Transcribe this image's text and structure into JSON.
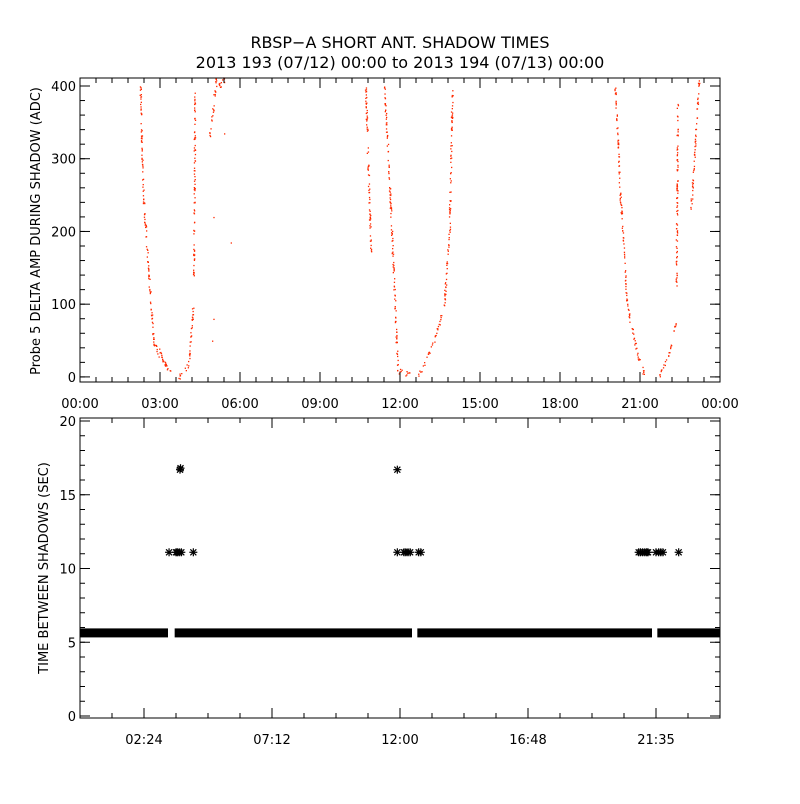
{
  "title": "RBSP−A SHORT ANT. SHADOW TIMES",
  "subtitle": "2013 193 (07/12) 00:00 to 2013 194 (07/13) 00:00",
  "chart_data": [
    {
      "type": "scatter",
      "ylabel": "Probe 5 DELTA AMP DURING SHADOW (ADC)",
      "xlabel": "",
      "xlim_hours": [
        0,
        24
      ],
      "ylim": [
        -7,
        411
      ],
      "x_tick_labels": [
        "00:00",
        "03:00",
        "06:00",
        "09:00",
        "12:00",
        "15:00",
        "18:00",
        "21:00",
        "00:00"
      ],
      "x_tick_hours": [
        0,
        3,
        6,
        9,
        12,
        15,
        18,
        21,
        24
      ],
      "y_ticks": [
        0,
        100,
        200,
        300,
        400
      ],
      "y_tick_labels": [
        "0",
        "100",
        "200",
        "300",
        "400"
      ],
      "color": "#ff2a00",
      "segments_hour_value": [
        [
          2.25,
          400,
          2.36,
          250
        ],
        [
          2.36,
          250,
          2.55,
          150
        ],
        [
          2.55,
          150,
          2.74,
          50
        ],
        [
          2.74,
          50,
          2.95,
          30
        ],
        [
          2.95,
          40,
          3.15,
          20
        ],
        [
          3.15,
          20,
          3.37,
          5
        ],
        [
          3.7,
          0,
          4.08,
          20
        ],
        [
          4.08,
          20,
          4.23,
          100
        ],
        [
          4.25,
          140,
          4.3,
          390
        ],
        [
          4.85,
          330,
          5.1,
          410
        ],
        [
          5.2,
          400,
          5.4,
          410
        ],
        [
          10.7,
          400,
          10.9,
          170
        ],
        [
          11.4,
          400,
          11.55,
          300
        ],
        [
          11.55,
          300,
          11.68,
          200
        ],
        [
          11.68,
          200,
          11.8,
          100
        ],
        [
          11.8,
          100,
          11.9,
          10
        ],
        [
          11.9,
          8,
          12.35,
          4
        ],
        [
          12.67,
          0,
          13.27,
          50
        ],
        [
          13.27,
          50,
          13.65,
          100
        ],
        [
          13.65,
          100,
          13.84,
          200
        ],
        [
          13.84,
          200,
          13.95,
          395
        ],
        [
          20.05,
          400,
          20.25,
          250
        ],
        [
          20.25,
          250,
          20.5,
          100
        ],
        [
          20.5,
          100,
          20.9,
          30
        ],
        [
          20.9,
          30,
          21.15,
          5
        ],
        [
          21.7,
          0,
          22.05,
          30
        ],
        [
          22.05,
          30,
          22.35,
          80
        ],
        [
          22.35,
          120,
          22.4,
          380
        ],
        [
          22.9,
          230,
          23.2,
          410
        ]
      ],
      "isolated_points_hour_value": [
        [
          5.65,
          185
        ],
        [
          5.0,
          80
        ],
        [
          4.95,
          50
        ],
        [
          5.4,
          335
        ],
        [
          5.0,
          220
        ]
      ]
    },
    {
      "type": "scatter",
      "ylabel": "TIME BETWEEN SHADOWS (SEC)",
      "xlabel": "",
      "xlim_hours": [
        0,
        24
      ],
      "ylim": [
        0,
        20
      ],
      "x_tick_labels": [
        "02:24",
        "07:12",
        "12:00",
        "16:48",
        "21:35"
      ],
      "x_tick_hours": [
        2.4,
        7.2,
        12.0,
        16.8,
        21.6
      ],
      "y_ticks": [
        0,
        5,
        10,
        15,
        20
      ],
      "y_tick_labels": [
        "0",
        "5",
        "10",
        "15",
        "20"
      ],
      "marker": "asterisk",
      "color": "#000000",
      "baseline_value": 5.6,
      "baseline_ranges_hours": [
        [
          0,
          3.3
        ],
        [
          3.55,
          12.45
        ],
        [
          12.65,
          21.45
        ],
        [
          21.65,
          24
        ]
      ],
      "points_hour_value": [
        [
          3.34,
          11.1
        ],
        [
          3.6,
          11.1
        ],
        [
          3.65,
          11.1
        ],
        [
          3.72,
          11.1
        ],
        [
          3.8,
          11.1
        ],
        [
          4.25,
          11.1
        ],
        [
          3.75,
          16.7
        ],
        [
          3.77,
          16.8
        ],
        [
          11.9,
          16.7
        ],
        [
          11.9,
          11.1
        ],
        [
          12.15,
          11.1
        ],
        [
          12.22,
          11.1
        ],
        [
          12.3,
          11.1
        ],
        [
          12.38,
          11.1
        ],
        [
          12.7,
          11.1
        ],
        [
          12.78,
          11.1
        ],
        [
          20.95,
          11.1
        ],
        [
          21.02,
          11.1
        ],
        [
          21.1,
          11.1
        ],
        [
          21.18,
          11.1
        ],
        [
          21.25,
          11.1
        ],
        [
          21.3,
          11.1
        ],
        [
          21.6,
          11.1
        ],
        [
          21.7,
          11.1
        ],
        [
          21.78,
          11.1
        ],
        [
          21.86,
          11.1
        ],
        [
          22.45,
          11.1
        ]
      ]
    }
  ]
}
